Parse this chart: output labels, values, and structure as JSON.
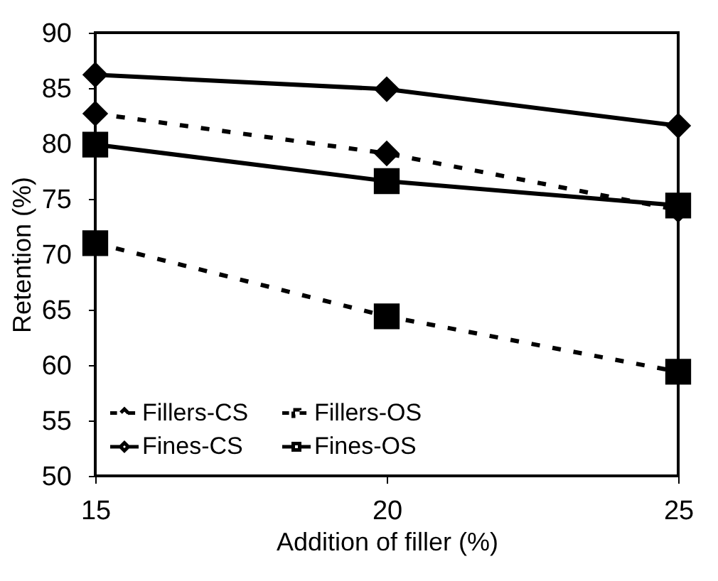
{
  "chart_data": {
    "type": "line",
    "xlabel": "Addition of filler (%)",
    "ylabel": "Retention (%)",
    "x": [
      15,
      20,
      25
    ],
    "xlim": [
      15,
      25
    ],
    "xticks": [
      15,
      20,
      25
    ],
    "ylim": [
      50,
      90
    ],
    "yticks": [
      50,
      55,
      60,
      65,
      70,
      75,
      80,
      85,
      90
    ],
    "grid": false,
    "legend": "bottom",
    "series": [
      {
        "name": "Fillers-CS",
        "color": "#000000",
        "marker": "diamond",
        "line_style": "dashed",
        "values": [
          82.7,
          79.1,
          74
        ]
      },
      {
        "name": "Fillers-OS",
        "color": "#000000",
        "marker": "square",
        "line_style": "dashed",
        "values": [
          71.0,
          64.4,
          59.4
        ]
      },
      {
        "name": "Fines-CS",
        "color": "#000000",
        "marker": "diamond",
        "line_style": "solid",
        "values": [
          86.2,
          84.9,
          81.6
        ]
      },
      {
        "name": "Fines-OS",
        "color": "#000000",
        "marker": "square",
        "line_style": "solid",
        "values": [
          79.9,
          76.6,
          74.4
        ]
      }
    ]
  }
}
